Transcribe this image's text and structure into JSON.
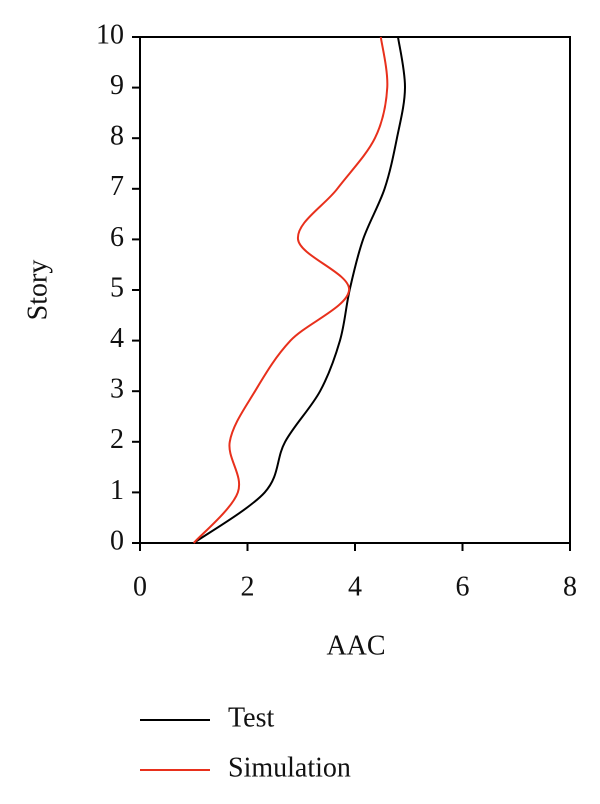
{
  "chart_data": {
    "type": "line",
    "xlabel": "AAC",
    "ylabel": "Story",
    "y": [
      0,
      1,
      2,
      3,
      4,
      5,
      6,
      7,
      8,
      9,
      10
    ],
    "series": [
      {
        "name": "Test",
        "color": "#000000",
        "values": [
          1.0,
          2.32,
          2.7,
          3.35,
          3.72,
          3.9,
          4.15,
          4.55,
          4.78,
          4.93,
          4.8
        ]
      },
      {
        "name": "Simulation",
        "color": "#e8301c",
        "values": [
          1.0,
          1.82,
          1.67,
          2.14,
          2.8,
          3.89,
          2.94,
          3.67,
          4.37,
          4.6,
          4.48
        ]
      }
    ],
    "xlim": [
      0,
      8
    ],
    "xticks": [
      0,
      2,
      4,
      6,
      8
    ],
    "ylim": [
      0,
      10
    ],
    "yticks": [
      0,
      1,
      2,
      3,
      4,
      5,
      6,
      7,
      8,
      9,
      10
    ],
    "grid": false
  }
}
